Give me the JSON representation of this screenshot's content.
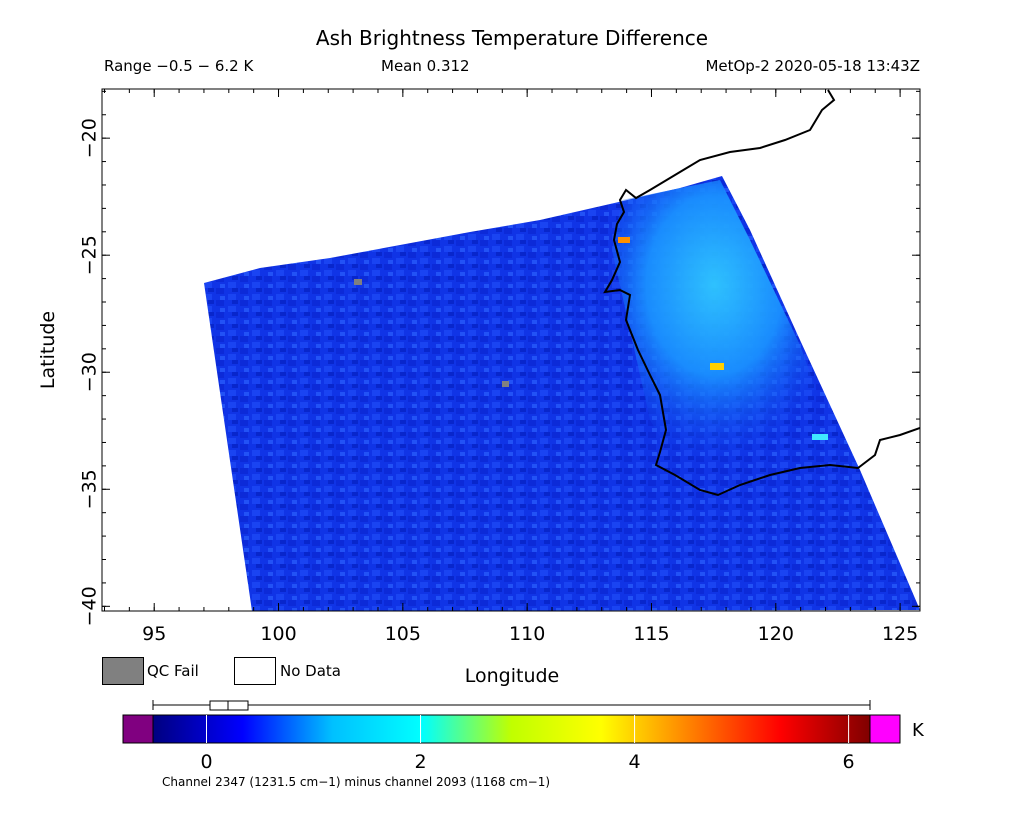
{
  "header": {
    "title": "Ash Brightness Temperature Difference",
    "range": "Range −0.5 − 6.2 K",
    "mean": "Mean 0.312",
    "satellite_time": "MetOp-2 2020-05-18 13:43Z"
  },
  "axes": {
    "xlabel": "Longitude",
    "ylabel": "Latitude",
    "xticks": [
      "95",
      "100",
      "105",
      "110",
      "115",
      "120",
      "125"
    ],
    "yticks": [
      "−20",
      "−25",
      "−30",
      "−35",
      "−40"
    ]
  },
  "legend": {
    "qc_fail": "QC Fail",
    "no_data": "No Data",
    "qc_color": "#808080"
  },
  "colorbar": {
    "unit": "K",
    "ticks": [
      "0",
      "2",
      "4",
      "6"
    ],
    "caption": "Channel 2347 (1231.5 cm−1) minus channel 2093 (1168 cm−1)",
    "under_color": "#800080",
    "over_color": "#ff00ff",
    "colors": [
      "#000080",
      "#0000ff",
      "#00c0ff",
      "#00ffff",
      "#c0ff00",
      "#ffff00",
      "#ff8000",
      "#ff0000",
      "#800000"
    ]
  },
  "map": {
    "lon_range": [
      92.9,
      125.8
    ],
    "lat_range": [
      -40.2,
      -17.9
    ],
    "background_value_color": "#1030e8",
    "ash_region_color": "#20a0ff"
  }
}
